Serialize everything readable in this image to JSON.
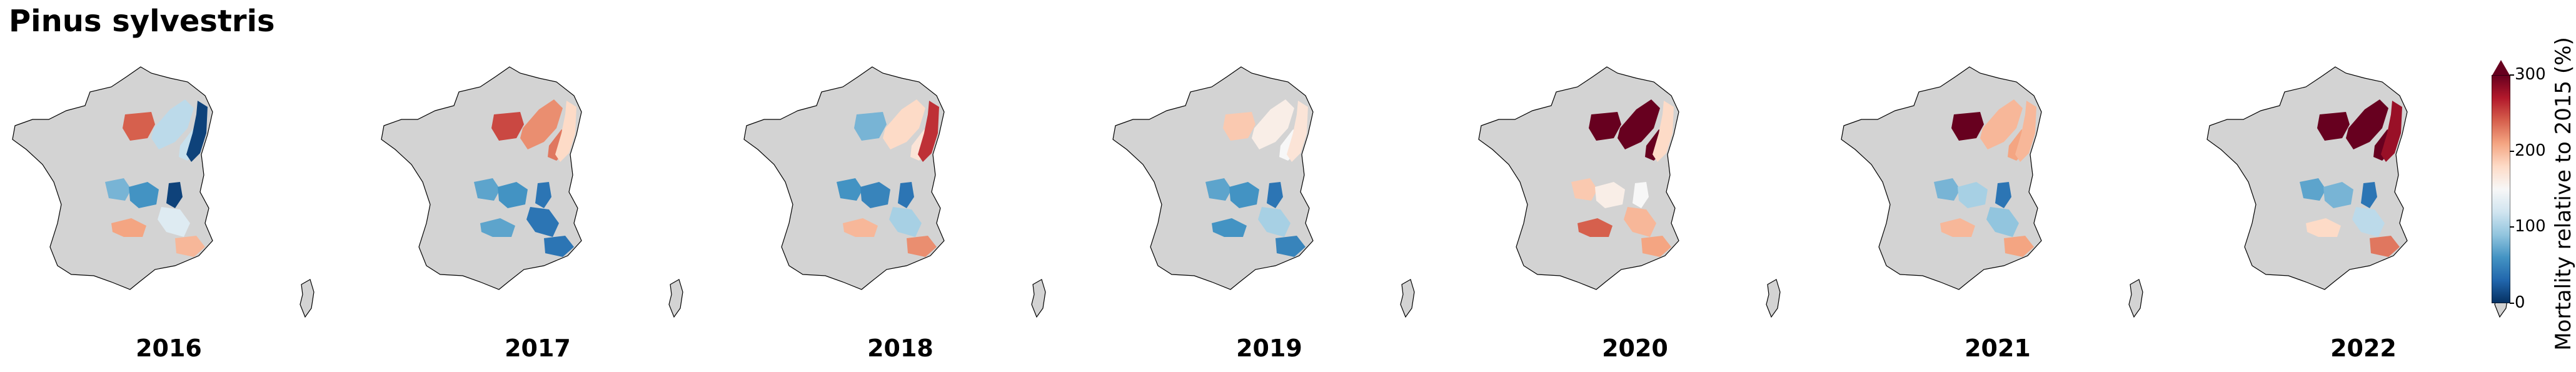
{
  "title": "Pinus sylvestris",
  "years": [
    "2016",
    "2017",
    "2018",
    "2019",
    "2020",
    "2021",
    "2022"
  ],
  "colorbar": {
    "label": "Mortality relative to 2015 (%)",
    "ticks": [
      "0",
      "100",
      "200",
      "300"
    ],
    "min": 0,
    "max": 300,
    "extend": "max",
    "colors": [
      "#053061",
      "#2166ac",
      "#4393c3",
      "#92c5de",
      "#d1e5f0",
      "#f7f7f7",
      "#fddbc7",
      "#f4a582",
      "#d6604d",
      "#b2182b",
      "#67001f"
    ]
  },
  "land_color": "#d3d3d3",
  "regions": [
    "north_center",
    "lorraine",
    "vosges",
    "alsace",
    "massif_central_w",
    "massif_central_e",
    "jura_alps",
    "south_alps",
    "provence",
    "pyrenees_e"
  ],
  "region_values": [
    [
      240,
      110,
      115,
      10,
      80,
      60,
      10,
      130,
      200,
      210
    ],
    [
      250,
      220,
      230,
      180,
      70,
      60,
      40,
      40,
      40,
      70
    ],
    [
      80,
      180,
      170,
      260,
      60,
      50,
      40,
      100,
      220,
      200
    ],
    [
      190,
      160,
      150,
      170,
      70,
      60,
      40,
      100,
      50,
      60
    ],
    [
      320,
      320,
      320,
      180,
      190,
      160,
      150,
      200,
      210,
      240
    ],
    [
      320,
      200,
      210,
      200,
      80,
      100,
      40,
      90,
      210,
      200
    ],
    [
      320,
      320,
      320,
      280,
      70,
      80,
      40,
      110,
      230,
      180
    ]
  ]
}
